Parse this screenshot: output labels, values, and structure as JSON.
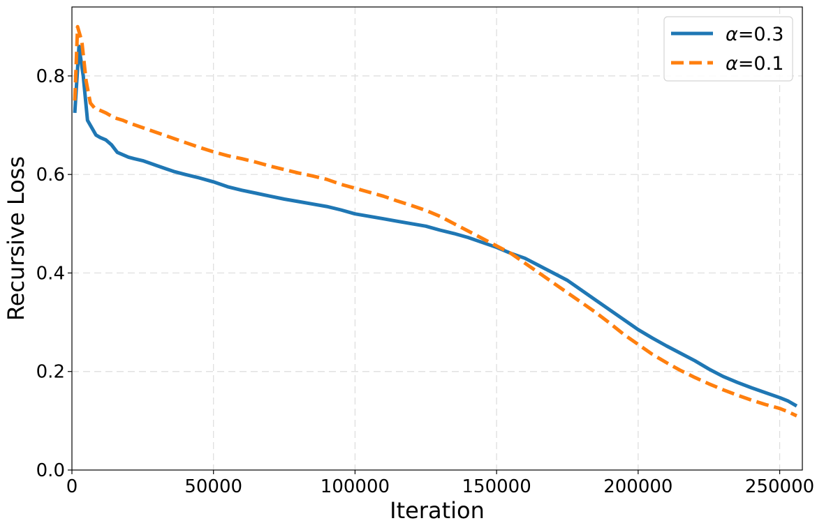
{
  "chart_data": {
    "type": "line",
    "title": "",
    "xlabel": "Iteration",
    "ylabel": "Recursive Loss",
    "xlim": [
      0,
      258000
    ],
    "ylim": [
      0.0,
      0.94
    ],
    "xticks": [
      0,
      50000,
      100000,
      150000,
      200000,
      250000
    ],
    "xtick_labels": [
      "0",
      "50000",
      "100000",
      "150000",
      "200000",
      "250000"
    ],
    "yticks": [
      0.0,
      0.2,
      0.4,
      0.6,
      0.8
    ],
    "ytick_labels": [
      "0.0",
      "0.2",
      "0.4",
      "0.6",
      "0.8"
    ],
    "grid": true,
    "legend_position": "top-right",
    "series": [
      {
        "name": "α=0.3",
        "legend_symbol": "α",
        "legend_value": "=0.3",
        "color": "#1f77b4",
        "style": "solid",
        "x": [
          1000,
          2500,
          4000,
          5500,
          7000,
          8500,
          10000,
          12000,
          14000,
          16000,
          18000,
          20000,
          22000,
          25000,
          28000,
          30000,
          33000,
          36000,
          40000,
          45000,
          50000,
          55000,
          60000,
          65000,
          70000,
          75000,
          80000,
          85000,
          90000,
          95000,
          100000,
          105000,
          110000,
          115000,
          120000,
          125000,
          130000,
          135000,
          140000,
          145000,
          150000,
          155000,
          160000,
          165000,
          170000,
          175000,
          180000,
          185000,
          190000,
          195000,
          200000,
          205000,
          210000,
          215000,
          220000,
          225000,
          230000,
          235000,
          240000,
          245000,
          250000,
          253000,
          256000
        ],
        "y": [
          0.725,
          0.86,
          0.8,
          0.71,
          0.695,
          0.68,
          0.675,
          0.67,
          0.66,
          0.645,
          0.64,
          0.635,
          0.632,
          0.628,
          0.622,
          0.618,
          0.612,
          0.606,
          0.6,
          0.593,
          0.585,
          0.575,
          0.568,
          0.562,
          0.556,
          0.55,
          0.545,
          0.54,
          0.535,
          0.528,
          0.52,
          0.515,
          0.51,
          0.505,
          0.5,
          0.495,
          0.487,
          0.48,
          0.472,
          0.462,
          0.452,
          0.44,
          0.43,
          0.415,
          0.4,
          0.385,
          0.365,
          0.345,
          0.325,
          0.305,
          0.285,
          0.268,
          0.252,
          0.237,
          0.222,
          0.205,
          0.19,
          0.178,
          0.167,
          0.157,
          0.147,
          0.14,
          0.13
        ]
      },
      {
        "name": "α=0.1",
        "legend_symbol": "α",
        "legend_value": "=0.1",
        "color": "#ff7f0e",
        "style": "dashed",
        "x": [
          1000,
          2000,
          3500,
          5000,
          6500,
          8000,
          10000,
          12000,
          15000,
          18000,
          20000,
          25000,
          30000,
          35000,
          40000,
          45000,
          50000,
          55000,
          60000,
          65000,
          70000,
          75000,
          80000,
          85000,
          90000,
          95000,
          100000,
          105000,
          110000,
          115000,
          120000,
          125000,
          130000,
          135000,
          140000,
          145000,
          150000,
          155000,
          160000,
          165000,
          170000,
          175000,
          180000,
          185000,
          190000,
          195000,
          200000,
          205000,
          210000,
          215000,
          220000,
          225000,
          230000,
          235000,
          240000,
          245000,
          250000,
          253000,
          256000
        ],
        "y": [
          0.75,
          0.9,
          0.87,
          0.79,
          0.745,
          0.735,
          0.73,
          0.725,
          0.715,
          0.71,
          0.705,
          0.695,
          0.685,
          0.675,
          0.665,
          0.655,
          0.646,
          0.638,
          0.632,
          0.625,
          0.617,
          0.61,
          0.603,
          0.597,
          0.59,
          0.58,
          0.572,
          0.564,
          0.556,
          0.546,
          0.537,
          0.527,
          0.515,
          0.5,
          0.485,
          0.47,
          0.455,
          0.44,
          0.42,
          0.4,
          0.38,
          0.36,
          0.34,
          0.32,
          0.298,
          0.275,
          0.255,
          0.235,
          0.218,
          0.202,
          0.188,
          0.175,
          0.163,
          0.152,
          0.142,
          0.133,
          0.125,
          0.118,
          0.11
        ]
      }
    ]
  }
}
